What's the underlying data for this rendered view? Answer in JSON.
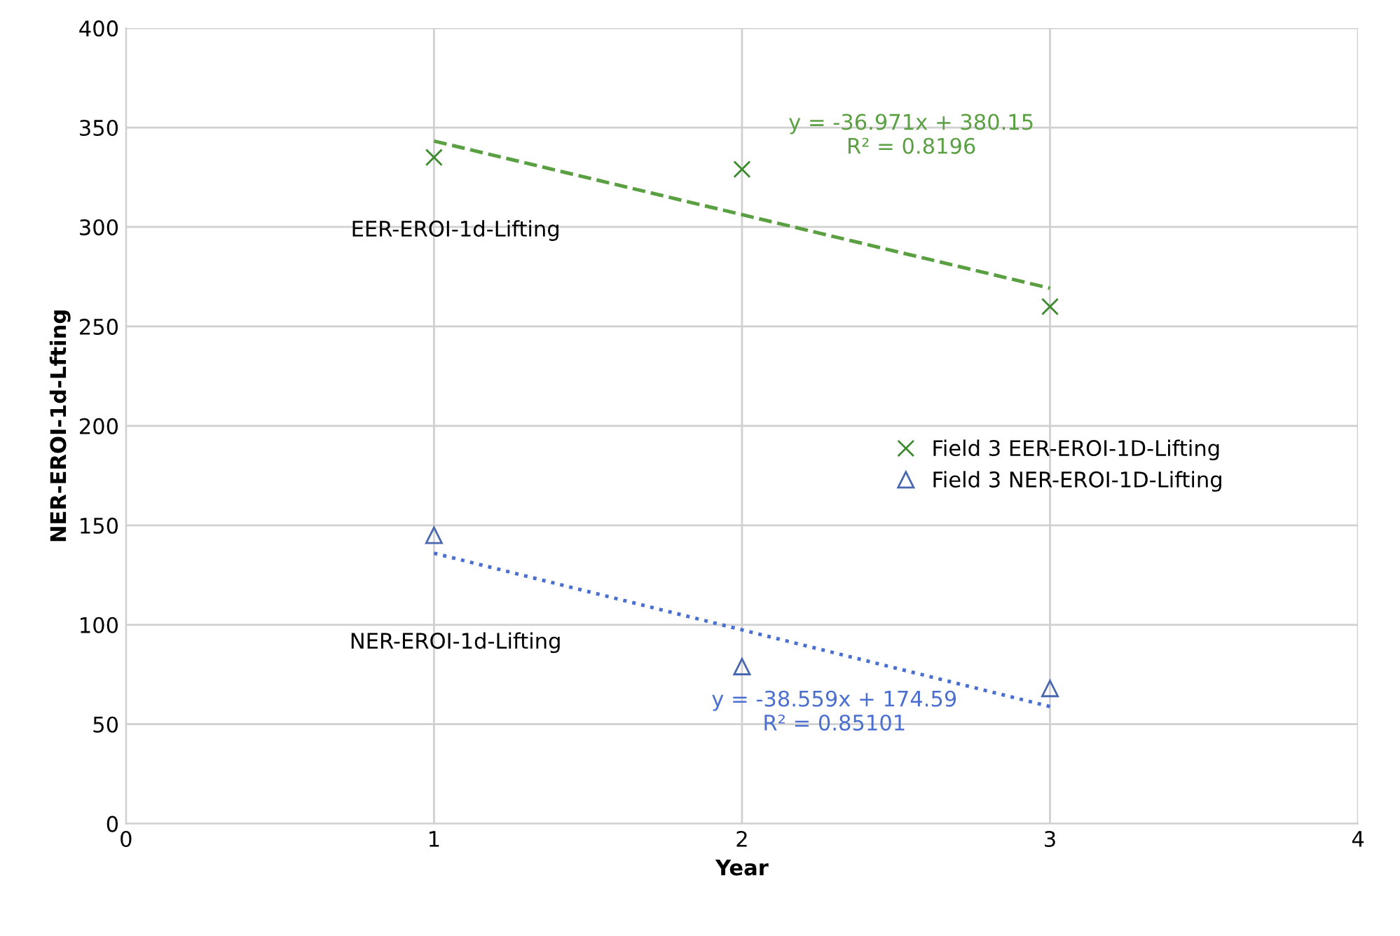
{
  "chart_data": {
    "type": "scatter",
    "xlabel": "Year",
    "ylabel": "NER-EROI-1d-Lfting",
    "xlim": [
      0,
      4
    ],
    "xticks": [
      0,
      1,
      2,
      3,
      4
    ],
    "ylim": [
      0,
      400
    ],
    "yticks": [
      0,
      50,
      100,
      150,
      200,
      250,
      300,
      350,
      400
    ],
    "grid": true,
    "legend": "right",
    "series": [
      {
        "name": "Field 3 EER-EROI-1D-Lifting",
        "color": "#3c8a2e",
        "marker": "cross",
        "x": [
          1,
          2,
          3
        ],
        "values": [
          335,
          329,
          260
        ]
      },
      {
        "name": "Field 3 NER-EROI-1D-Lifting",
        "color": "#4a68b0",
        "marker": "triangle",
        "x": [
          1,
          2,
          3
        ],
        "values": [
          145,
          79,
          68
        ]
      },
      {
        "type": "line",
        "name": "EER-EROI-1d-Lifting",
        "color": "#5aa043",
        "line_style": "dashed",
        "marker": "none",
        "x": [
          1,
          3
        ],
        "values": [
          343.2,
          269.2
        ]
      },
      {
        "type": "line",
        "name": "NER-EROI-1d-Lifting",
        "color": "#4a6fd0",
        "line_style": "dotted",
        "marker": "none",
        "x": [
          1,
          3
        ],
        "values": [
          136.0,
          58.9
        ]
      }
    ],
    "annotations": [
      "y = -36.971x + 380.15\nR² = 0.8196",
      "y = -38.559x + 174.59\nR² = 0.85101"
    ]
  }
}
